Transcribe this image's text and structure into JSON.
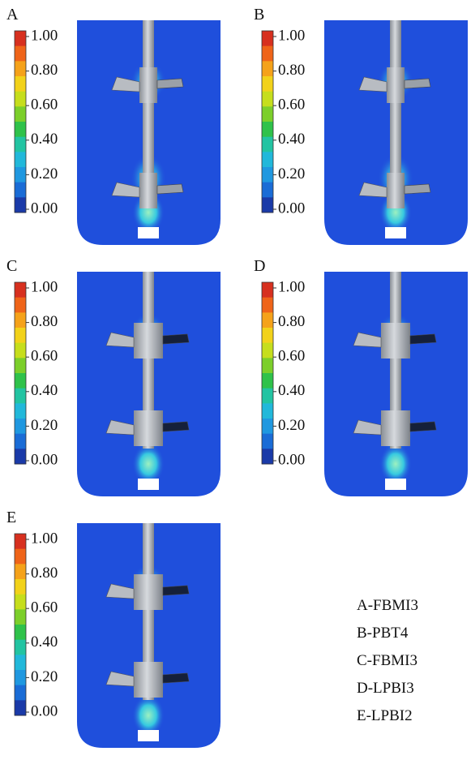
{
  "panels": [
    {
      "label": "A",
      "colorbar_ticks": [
        "1.00",
        "0.80",
        "0.60",
        "0.40",
        "0.20",
        "0.00"
      ]
    },
    {
      "label": "B",
      "colorbar_ticks": [
        "1.00",
        "0.80",
        "0.60",
        "0.40",
        "0.20",
        "0.00"
      ]
    },
    {
      "label": "C",
      "colorbar_ticks": [
        "1.00",
        "0.80",
        "0.60",
        "0.40",
        "0.20",
        "0.00"
      ]
    },
    {
      "label": "D",
      "colorbar_ticks": [
        "1.00",
        "0.80",
        "0.60",
        "0.40",
        "0.20",
        "0.00"
      ]
    },
    {
      "label": "E",
      "colorbar_ticks": [
        "1.00",
        "0.80",
        "0.60",
        "0.40",
        "0.20",
        "0.00"
      ]
    }
  ],
  "legend": [
    "A-FBMI3",
    "B-PBT4",
    "C-FBMI3",
    "D-LPBI3",
    "E-LPBI2"
  ]
}
